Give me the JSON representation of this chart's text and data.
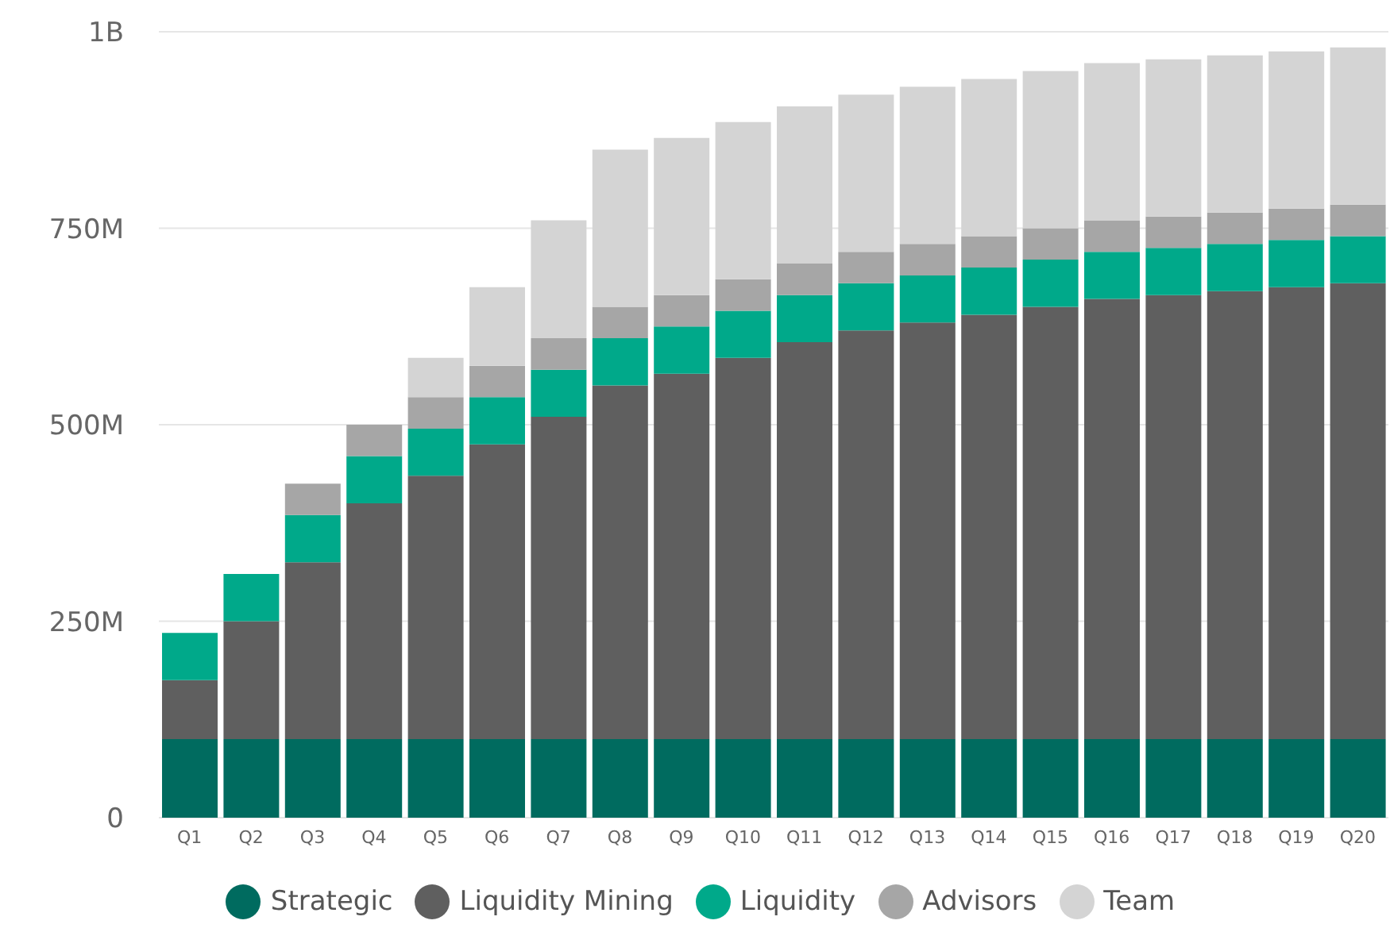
{
  "chart_data": {
    "type": "bar",
    "stacked": true,
    "categories": [
      "Q1",
      "Q2",
      "Q3",
      "Q4",
      "Q5",
      "Q6",
      "Q7",
      "Q8",
      "Q9",
      "Q10",
      "Q11",
      "Q12",
      "Q13",
      "Q14",
      "Q15",
      "Q16",
      "Q17",
      "Q18",
      "Q19",
      "Q20"
    ],
    "series": [
      {
        "name": "Strategic",
        "color": "#006b5f",
        "values": [
          100000000,
          100000000,
          100000000,
          100000000,
          100000000,
          100000000,
          100000000,
          100000000,
          100000000,
          100000000,
          100000000,
          100000000,
          100000000,
          100000000,
          100000000,
          100000000,
          100000000,
          100000000,
          100000000,
          100000000
        ]
      },
      {
        "name": "Liquidity Mining",
        "color": "#5f5f5f",
        "values": [
          75000000,
          150000000,
          225000000,
          300000000,
          335000000,
          375000000,
          410000000,
          450000000,
          465000000,
          485000000,
          505000000,
          520000000,
          530000000,
          540000000,
          550000000,
          560000000,
          565000000,
          570000000,
          575000000,
          580000000
        ]
      },
      {
        "name": "Liquidity",
        "color": "#00a98a",
        "values": [
          60000000,
          60000000,
          60000000,
          60000000,
          60000000,
          60000000,
          60000000,
          60000000,
          60000000,
          60000000,
          60000000,
          60000000,
          60000000,
          60000000,
          60000000,
          60000000,
          60000000,
          60000000,
          60000000,
          60000000
        ]
      },
      {
        "name": "Advisors",
        "color": "#a6a6a6",
        "values": [
          0,
          0,
          40000000,
          40000000,
          40000000,
          40000000,
          40000000,
          40000000,
          40000000,
          40000000,
          40000000,
          40000000,
          40000000,
          40000000,
          40000000,
          40000000,
          40000000,
          40000000,
          40000000,
          40000000
        ]
      },
      {
        "name": "Team",
        "color": "#d4d4d4",
        "values": [
          0,
          0,
          0,
          0,
          50000000,
          100000000,
          150000000,
          200000000,
          200000000,
          200000000,
          200000000,
          200000000,
          200000000,
          200000000,
          200000000,
          200000000,
          200000000,
          200000000,
          200000000,
          200000000
        ]
      }
    ],
    "ylim": [
      0,
      1000000000
    ],
    "yticks": [
      0,
      {
        "value": 250000000,
        "label": "250M"
      },
      {
        "value": 500000000,
        "label": "500M"
      },
      {
        "value": 750000000,
        "label": "750M"
      },
      {
        "value": 1000000000,
        "label": "1B"
      }
    ],
    "grid": "y",
    "legend": "bottom"
  }
}
